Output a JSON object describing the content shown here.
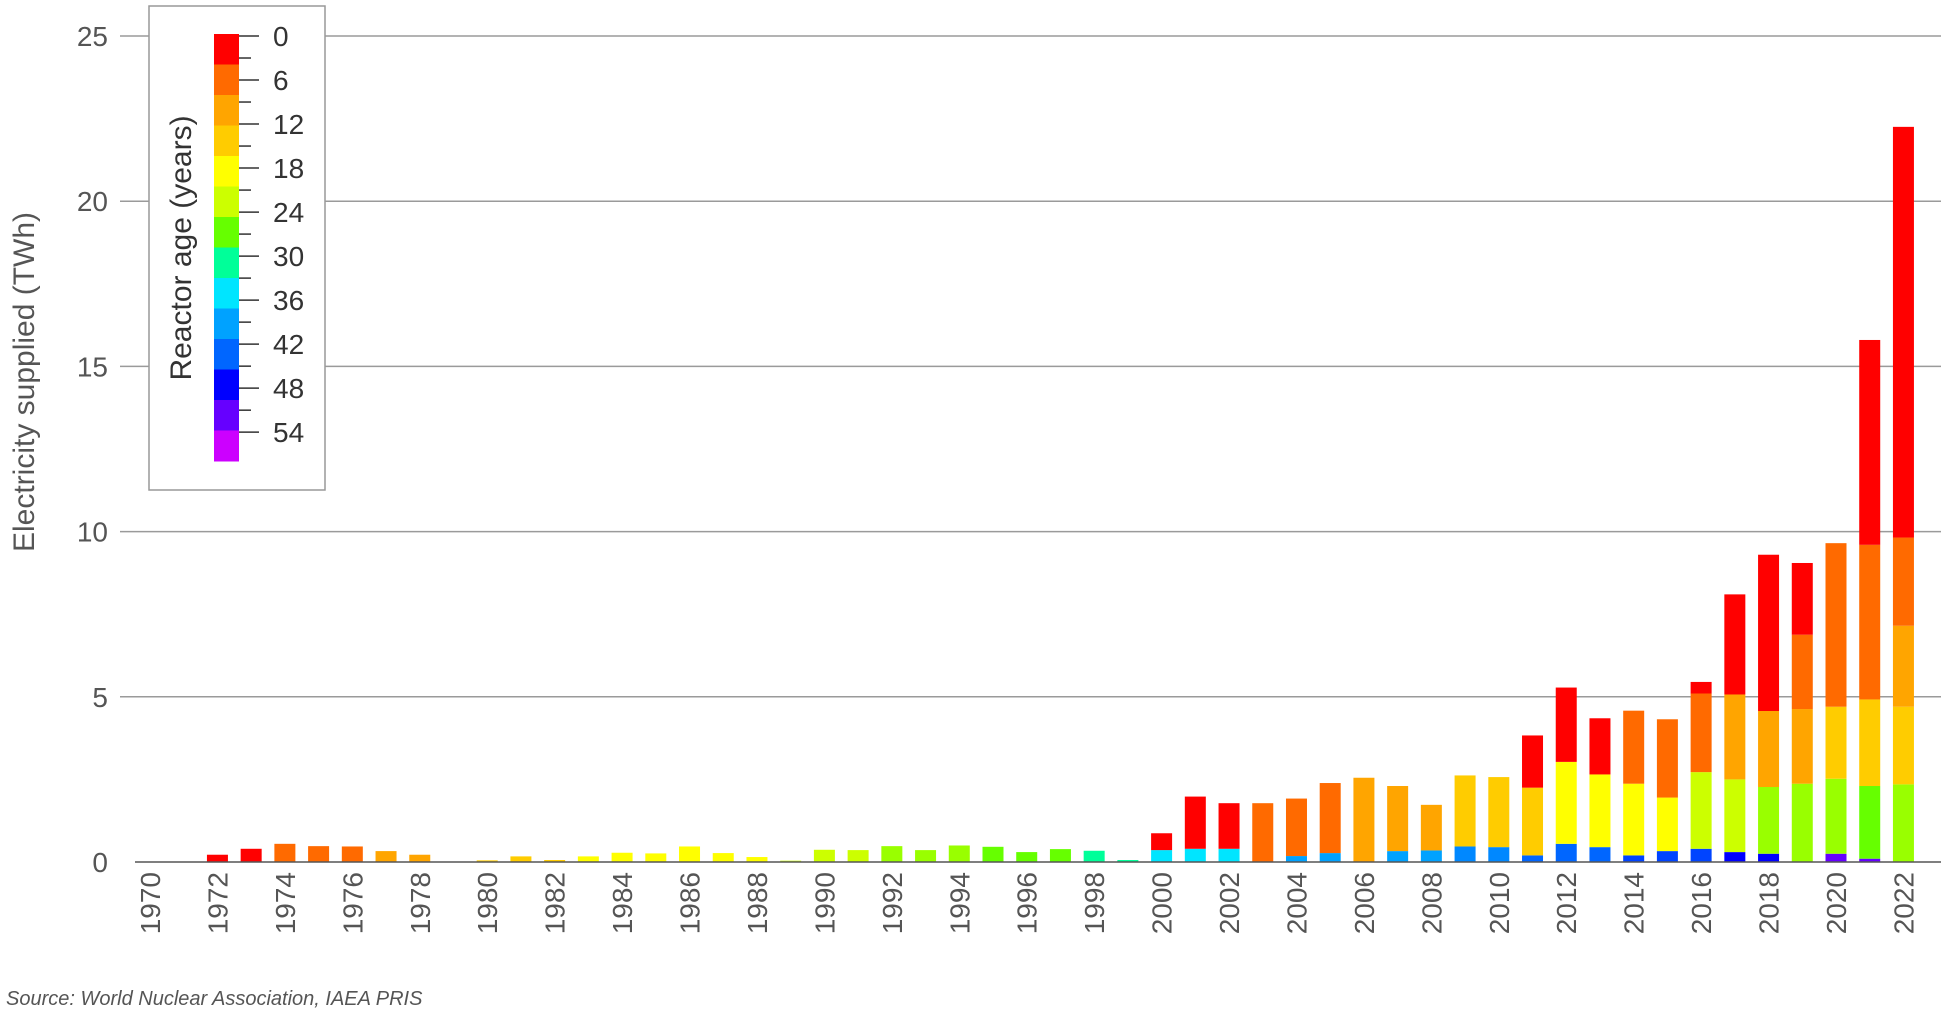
{
  "chart_data": {
    "type": "bar",
    "stacked": true,
    "ylabel": "Electricity supplied (TWh)",
    "ylim": [
      0,
      25
    ],
    "yticks": [
      0,
      5,
      10,
      15,
      20,
      25
    ],
    "grid": "horizontal",
    "x": [
      1970,
      1971,
      1972,
      1973,
      1974,
      1975,
      1976,
      1977,
      1978,
      1979,
      1980,
      1981,
      1982,
      1983,
      1984,
      1985,
      1986,
      1987,
      1988,
      1989,
      1990,
      1991,
      1992,
      1993,
      1994,
      1995,
      1996,
      1997,
      1998,
      1999,
      2000,
      2001,
      2002,
      2003,
      2004,
      2005,
      2006,
      2007,
      2008,
      2009,
      2010,
      2011,
      2012,
      2013,
      2014,
      2015,
      2016,
      2017,
      2018,
      2019,
      2020,
      2021,
      2022
    ],
    "xticks": [
      "1970",
      "1972",
      "1974",
      "1976",
      "1978",
      "1980",
      "1982",
      "1984",
      "1986",
      "1988",
      "1990",
      "1992",
      "1994",
      "1996",
      "1998",
      "2000",
      "2002",
      "2004",
      "2006",
      "2008",
      "2010",
      "2012",
      "2014",
      "2016",
      "2018",
      "2020",
      "2022"
    ],
    "legend": {
      "title": "Reactor age (years)",
      "placement": "top-left",
      "ticks": [
        "0",
        "6",
        "12",
        "18",
        "24",
        "30",
        "36",
        "42",
        "48",
        "54"
      ],
      "colors": [
        "#ff0000",
        "#ff6a00",
        "#ffa500",
        "#ffcc00",
        "#ffff00",
        "#ccff00",
        "#66ff00",
        "#00ff99",
        "#00e5ff",
        "#00a2ff",
        "#0066ff",
        "#0000ff",
        "#6600ff",
        "#cc00ff"
      ]
    },
    "stack_color_order": [
      "#ff0000",
      "#ff6a00",
      "#ffa500",
      "#ffcc00",
      "#ffff00",
      "#ccff00",
      "#66ff00",
      "#00ff99",
      "#00e5ff",
      "#00a2ff",
      "#0066ff",
      "#0000ff",
      "#6600ff",
      "#cc00ff"
    ],
    "bars": [
      [],
      [],
      [
        {
          "c": "#ff0000",
          "v": 0.22
        }
      ],
      [
        {
          "c": "#ff0000",
          "v": 0.4
        }
      ],
      [
        {
          "c": "#ff6a00",
          "v": 0.55
        }
      ],
      [
        {
          "c": "#ff6a00",
          "v": 0.48
        }
      ],
      [
        {
          "c": "#ff6a00",
          "v": 0.47
        }
      ],
      [
        {
          "c": "#ffa500",
          "v": 0.33
        }
      ],
      [
        {
          "c": "#ffa500",
          "v": 0.22
        }
      ],
      [],
      [
        {
          "c": "#ffcc00",
          "v": 0.05
        }
      ],
      [
        {
          "c": "#ffcc00",
          "v": 0.17
        }
      ],
      [
        {
          "c": "#ffcc00",
          "v": 0.06
        }
      ],
      [
        {
          "c": "#ffff00",
          "v": 0.17
        }
      ],
      [
        {
          "c": "#ffff00",
          "v": 0.28
        }
      ],
      [
        {
          "c": "#ffff00",
          "v": 0.26
        }
      ],
      [
        {
          "c": "#ffff00",
          "v": 0.47
        }
      ],
      [
        {
          "c": "#ffff00",
          "v": 0.27
        }
      ],
      [
        {
          "c": "#ffff00",
          "v": 0.15
        }
      ],
      [
        {
          "c": "#ccff00",
          "v": 0.04
        }
      ],
      [
        {
          "c": "#ccff00",
          "v": 0.37
        }
      ],
      [
        {
          "c": "#ccff00",
          "v": 0.36
        }
      ],
      [
        {
          "c": "#99ff00",
          "v": 0.48
        }
      ],
      [
        {
          "c": "#99ff00",
          "v": 0.36
        }
      ],
      [
        {
          "c": "#99ff00",
          "v": 0.5
        }
      ],
      [
        {
          "c": "#66ff00",
          "v": 0.46
        }
      ],
      [
        {
          "c": "#66ff00",
          "v": 0.3
        }
      ],
      [
        {
          "c": "#66ff00",
          "v": 0.39
        }
      ],
      [
        {
          "c": "#00ff99",
          "v": 0.34
        }
      ],
      [
        {
          "c": "#00ff99",
          "v": 0.06
        }
      ],
      [
        {
          "c": "#00e5ff",
          "v": 0.36
        },
        {
          "c": "#ff0000",
          "v": 0.51
        }
      ],
      [
        {
          "c": "#00e5ff",
          "v": 0.4
        },
        {
          "c": "#ff0000",
          "v": 1.58
        }
      ],
      [
        {
          "c": "#00e5ff",
          "v": 0.4
        },
        {
          "c": "#ff0000",
          "v": 1.38
        }
      ],
      [
        {
          "c": "#ff6a00",
          "v": 1.78
        }
      ],
      [
        {
          "c": "#00a2ff",
          "v": 0.18
        },
        {
          "c": "#ff6a00",
          "v": 1.74
        }
      ],
      [
        {
          "c": "#00a2ff",
          "v": 0.27
        },
        {
          "c": "#ff6a00",
          "v": 2.12
        }
      ],
      [
        {
          "c": "#ffa500",
          "v": 2.55
        }
      ],
      [
        {
          "c": "#00a2ff",
          "v": 0.33
        },
        {
          "c": "#ffa500",
          "v": 1.97
        }
      ],
      [
        {
          "c": "#00a2ff",
          "v": 0.35
        },
        {
          "c": "#ffa500",
          "v": 1.38
        }
      ],
      [
        {
          "c": "#0088ff",
          "v": 0.47
        },
        {
          "c": "#ffcc00",
          "v": 2.15
        }
      ],
      [
        {
          "c": "#0088ff",
          "v": 0.45
        },
        {
          "c": "#ffcc00",
          "v": 2.12
        }
      ],
      [
        {
          "c": "#0066ff",
          "v": 0.2
        },
        {
          "c": "#ffcc00",
          "v": 2.05
        },
        {
          "c": "#ff0000",
          "v": 1.58
        }
      ],
      [
        {
          "c": "#0066ff",
          "v": 0.55
        },
        {
          "c": "#ffff00",
          "v": 2.48
        },
        {
          "c": "#ff0000",
          "v": 2.25
        }
      ],
      [
        {
          "c": "#0066ff",
          "v": 0.45
        },
        {
          "c": "#ffff00",
          "v": 2.2
        },
        {
          "c": "#ff0000",
          "v": 1.7
        }
      ],
      [
        {
          "c": "#0044ff",
          "v": 0.2
        },
        {
          "c": "#ffff00",
          "v": 2.17
        },
        {
          "c": "#ff6a00",
          "v": 2.21
        }
      ],
      [
        {
          "c": "#0044ff",
          "v": 0.33
        },
        {
          "c": "#ffff00",
          "v": 1.62
        },
        {
          "c": "#ff6a00",
          "v": 2.37
        }
      ],
      [
        {
          "c": "#0044ff",
          "v": 0.4
        },
        {
          "c": "#ccff00",
          "v": 2.32
        },
        {
          "c": "#ff6a00",
          "v": 2.38
        },
        {
          "c": "#ff0000",
          "v": 0.35
        }
      ],
      [
        {
          "c": "#0000ff",
          "v": 0.3
        },
        {
          "c": "#ccff00",
          "v": 2.2
        },
        {
          "c": "#ffa500",
          "v": 2.57
        },
        {
          "c": "#ff0000",
          "v": 3.03
        }
      ],
      [
        {
          "c": "#0000ff",
          "v": 0.25
        },
        {
          "c": "#99ff00",
          "v": 2.02
        },
        {
          "c": "#ffa500",
          "v": 2.3
        },
        {
          "c": "#ff0000",
          "v": 4.73
        }
      ],
      [
        {
          "c": "#99ff00",
          "v": 2.37
        },
        {
          "c": "#ffa500",
          "v": 2.26
        },
        {
          "c": "#ff6a00",
          "v": 2.25
        },
        {
          "c": "#ff0000",
          "v": 2.17
        }
      ],
      [
        {
          "c": "#6600ff",
          "v": 0.25
        },
        {
          "c": "#99ff00",
          "v": 2.27
        },
        {
          "c": "#ffcc00",
          "v": 2.18
        },
        {
          "c": "#ff6a00",
          "v": 4.95
        }
      ],
      [
        {
          "c": "#6600ff",
          "v": 0.1
        },
        {
          "c": "#66ff00",
          "v": 2.2
        },
        {
          "c": "#ffcc00",
          "v": 2.62
        },
        {
          "c": "#ff6a00",
          "v": 4.68
        },
        {
          "c": "#ff0000",
          "v": 6.2
        }
      ],
      [
        {
          "c": "#99ff00",
          "v": 2.35
        },
        {
          "c": "#ffcc00",
          "v": 2.35
        },
        {
          "c": "#ffa500",
          "v": 2.45
        },
        {
          "c": "#ff6a00",
          "v": 2.67
        },
        {
          "c": "#ff0000",
          "v": 12.43
        }
      ]
    ],
    "source": "Source: World Nuclear Association, IAEA PRIS"
  }
}
